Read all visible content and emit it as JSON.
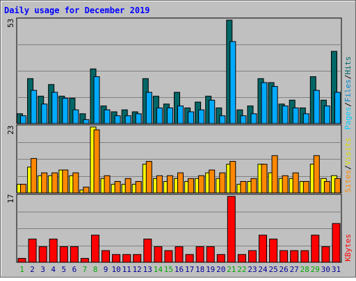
{
  "title": "Daily usage for December 2019",
  "colors": {
    "background": "#c0c0c0",
    "title": "#0000ff",
    "hits": "#006666",
    "files": "#00aaff",
    "pages": "#00ddff",
    "visits": "#ffff00",
    "sites": "#ff8800",
    "kbytes": "#ff0000",
    "weekend_day": "#00aa00",
    "weekday": "#000099"
  },
  "panels": {
    "top": {
      "scale_max_label": "53",
      "legend": {
        "pages": "Pages",
        "files": "Files",
        "hits": "Hits",
        "sep": "/"
      }
    },
    "middle": {
      "scale_max_label": "23",
      "legend": {
        "sites": "Sites",
        "visits": "Visits",
        "sep": "/"
      }
    },
    "bottom": {
      "scale_max_label": "17",
      "legend": {
        "kbytes": "KBytes"
      }
    }
  },
  "chart_data": {
    "type": "bar",
    "title": "Daily usage for December 2019",
    "categories": [
      "1",
      "2",
      "3",
      "4",
      "5",
      "6",
      "7",
      "8",
      "9",
      "10",
      "11",
      "12",
      "13",
      "14",
      "15",
      "16",
      "17",
      "18",
      "19",
      "20",
      "21",
      "22",
      "23",
      "24",
      "25",
      "26",
      "27",
      "28",
      "29",
      "30",
      "31"
    ],
    "weekend": [
      1,
      7,
      8,
      14,
      15,
      21,
      22,
      28,
      29
    ],
    "panels": [
      {
        "name": "hits-files-pages",
        "ymax": 53,
        "series": [
          {
            "name": "Hits",
            "values": [
              5,
              23,
              14,
              20,
              14,
              13,
              5,
              28,
              9,
              6,
              7,
              6,
              23,
              14,
              10,
              16,
              8,
              11,
              14,
              8,
              53,
              7,
              9,
              23,
              21,
              10,
              12,
              8,
              24,
              12,
              37
            ]
          },
          {
            "name": "Files",
            "values": [
              4,
              17,
              10,
              16,
              13,
              7,
              2,
              24,
              7,
              4,
              4,
              5,
              16,
              8,
              8,
              9,
              6,
              7,
              12,
              4,
              42,
              4,
              5,
              21,
              19,
              9,
              8,
              5,
              17,
              9,
              16
            ]
          }
        ]
      },
      {
        "name": "visits-sites",
        "ymax": 23,
        "series": [
          {
            "name": "Visits",
            "values": [
              3,
              9,
              6,
              6,
              8,
              6,
              1,
              23,
              5,
              3,
              3,
              3,
              10,
              5,
              4,
              5,
              4,
              5,
              7,
              5,
              10,
              3,
              4,
              10,
              7,
              5,
              5,
              4,
              10,
              5,
              6
            ]
          },
          {
            "name": "Sites",
            "values": [
              3,
              12,
              7,
              7,
              8,
              7,
              2,
              22,
              6,
              4,
              5,
              4,
              11,
              6,
              6,
              7,
              5,
              6,
              8,
              7,
              11,
              4,
              5,
              10,
              13,
              6,
              7,
              4,
              13,
              4,
              5
            ]
          }
        ]
      },
      {
        "name": "kbytes",
        "ymax": 17,
        "series": [
          {
            "name": "KBytes",
            "values": [
              1,
              6,
              4,
              6,
              4,
              4,
              1,
              7,
              3,
              2,
              2,
              2,
              6,
              4,
              3,
              4,
              2,
              4,
              4,
              2,
              17,
              2,
              3,
              7,
              6,
              3,
              3,
              3,
              7,
              4,
              10
            ]
          }
        ]
      }
    ]
  }
}
